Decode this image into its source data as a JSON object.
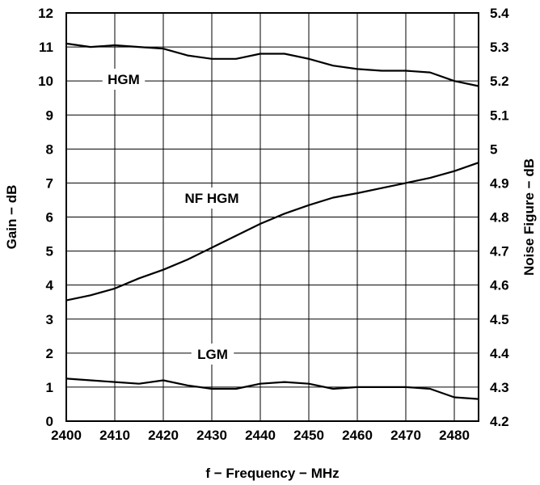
{
  "chart_data": {
    "type": "line",
    "title": "",
    "xlabel": "f − Frequency − MHz",
    "ylabel": "Gain − dB",
    "y2label": "Noise Figure − dB",
    "xlim": [
      2400,
      2485
    ],
    "ylim": [
      0,
      12
    ],
    "y2lim": [
      4.2,
      5.4
    ],
    "xticks": [
      2400,
      2410,
      2420,
      2430,
      2440,
      2450,
      2460,
      2470,
      2480
    ],
    "xtick_labels": [
      "2400",
      "2410",
      "2420",
      "2430",
      "2440",
      "2450",
      "2460",
      "2470",
      "2480"
    ],
    "yticks": [
      0,
      1,
      2,
      3,
      4,
      5,
      6,
      7,
      8,
      9,
      10,
      11,
      12
    ],
    "ytick_labels": [
      "0",
      "1",
      "2",
      "3",
      "4",
      "5",
      "6",
      "7",
      "8",
      "9",
      "10",
      "11",
      "12"
    ],
    "y2ticks": [
      4.2,
      4.3,
      4.4,
      4.5,
      4.6,
      4.7,
      4.8,
      4.9,
      5.0,
      5.1,
      5.2,
      5.3,
      5.4
    ],
    "y2tick_labels": [
      "4.2",
      "4.3",
      "4.4",
      "4.5",
      "4.6",
      "4.7",
      "4.8",
      "4.9",
      "5",
      "5.1",
      "5.2",
      "5.3",
      "5.4"
    ],
    "grid": true,
    "series": [
      {
        "name": "HGM",
        "axis": "left",
        "x": [
          2400,
          2405,
          2410,
          2415,
          2420,
          2425,
          2430,
          2435,
          2440,
          2445,
          2450,
          2455,
          2460,
          2465,
          2470,
          2475,
          2480,
          2485
        ],
        "y": [
          11.1,
          11.0,
          11.05,
          11.0,
          10.95,
          10.75,
          10.65,
          10.65,
          10.8,
          10.8,
          10.65,
          10.45,
          10.35,
          10.3,
          10.3,
          10.25,
          10.0,
          9.85
        ]
      },
      {
        "name": "NF HGM",
        "axis": "right",
        "x": [
          2400,
          2405,
          2410,
          2415,
          2420,
          2425,
          2430,
          2435,
          2440,
          2445,
          2450,
          2455,
          2460,
          2465,
          2470,
          2475,
          2480,
          2485
        ],
        "y": [
          4.555,
          4.57,
          4.59,
          4.62,
          4.645,
          4.675,
          4.71,
          4.745,
          4.78,
          4.81,
          4.835,
          4.857,
          4.87,
          4.885,
          4.9,
          4.915,
          4.935,
          4.96
        ]
      },
      {
        "name": "LGM",
        "axis": "left",
        "x": [
          2400,
          2405,
          2410,
          2415,
          2420,
          2425,
          2430,
          2435,
          2440,
          2445,
          2450,
          2455,
          2460,
          2465,
          2470,
          2475,
          2480,
          2485
        ],
        "y": [
          1.25,
          1.2,
          1.15,
          1.1,
          1.2,
          1.05,
          0.95,
          0.95,
          1.1,
          1.15,
          1.1,
          0.95,
          1.0,
          1.0,
          1.0,
          0.95,
          0.7,
          0.65
        ]
      }
    ],
    "annotations": [
      {
        "text": "HGM",
        "series": "HGM"
      },
      {
        "text": "NF HGM",
        "series": "NF HGM"
      },
      {
        "text": "LGM",
        "series": "LGM"
      }
    ]
  }
}
